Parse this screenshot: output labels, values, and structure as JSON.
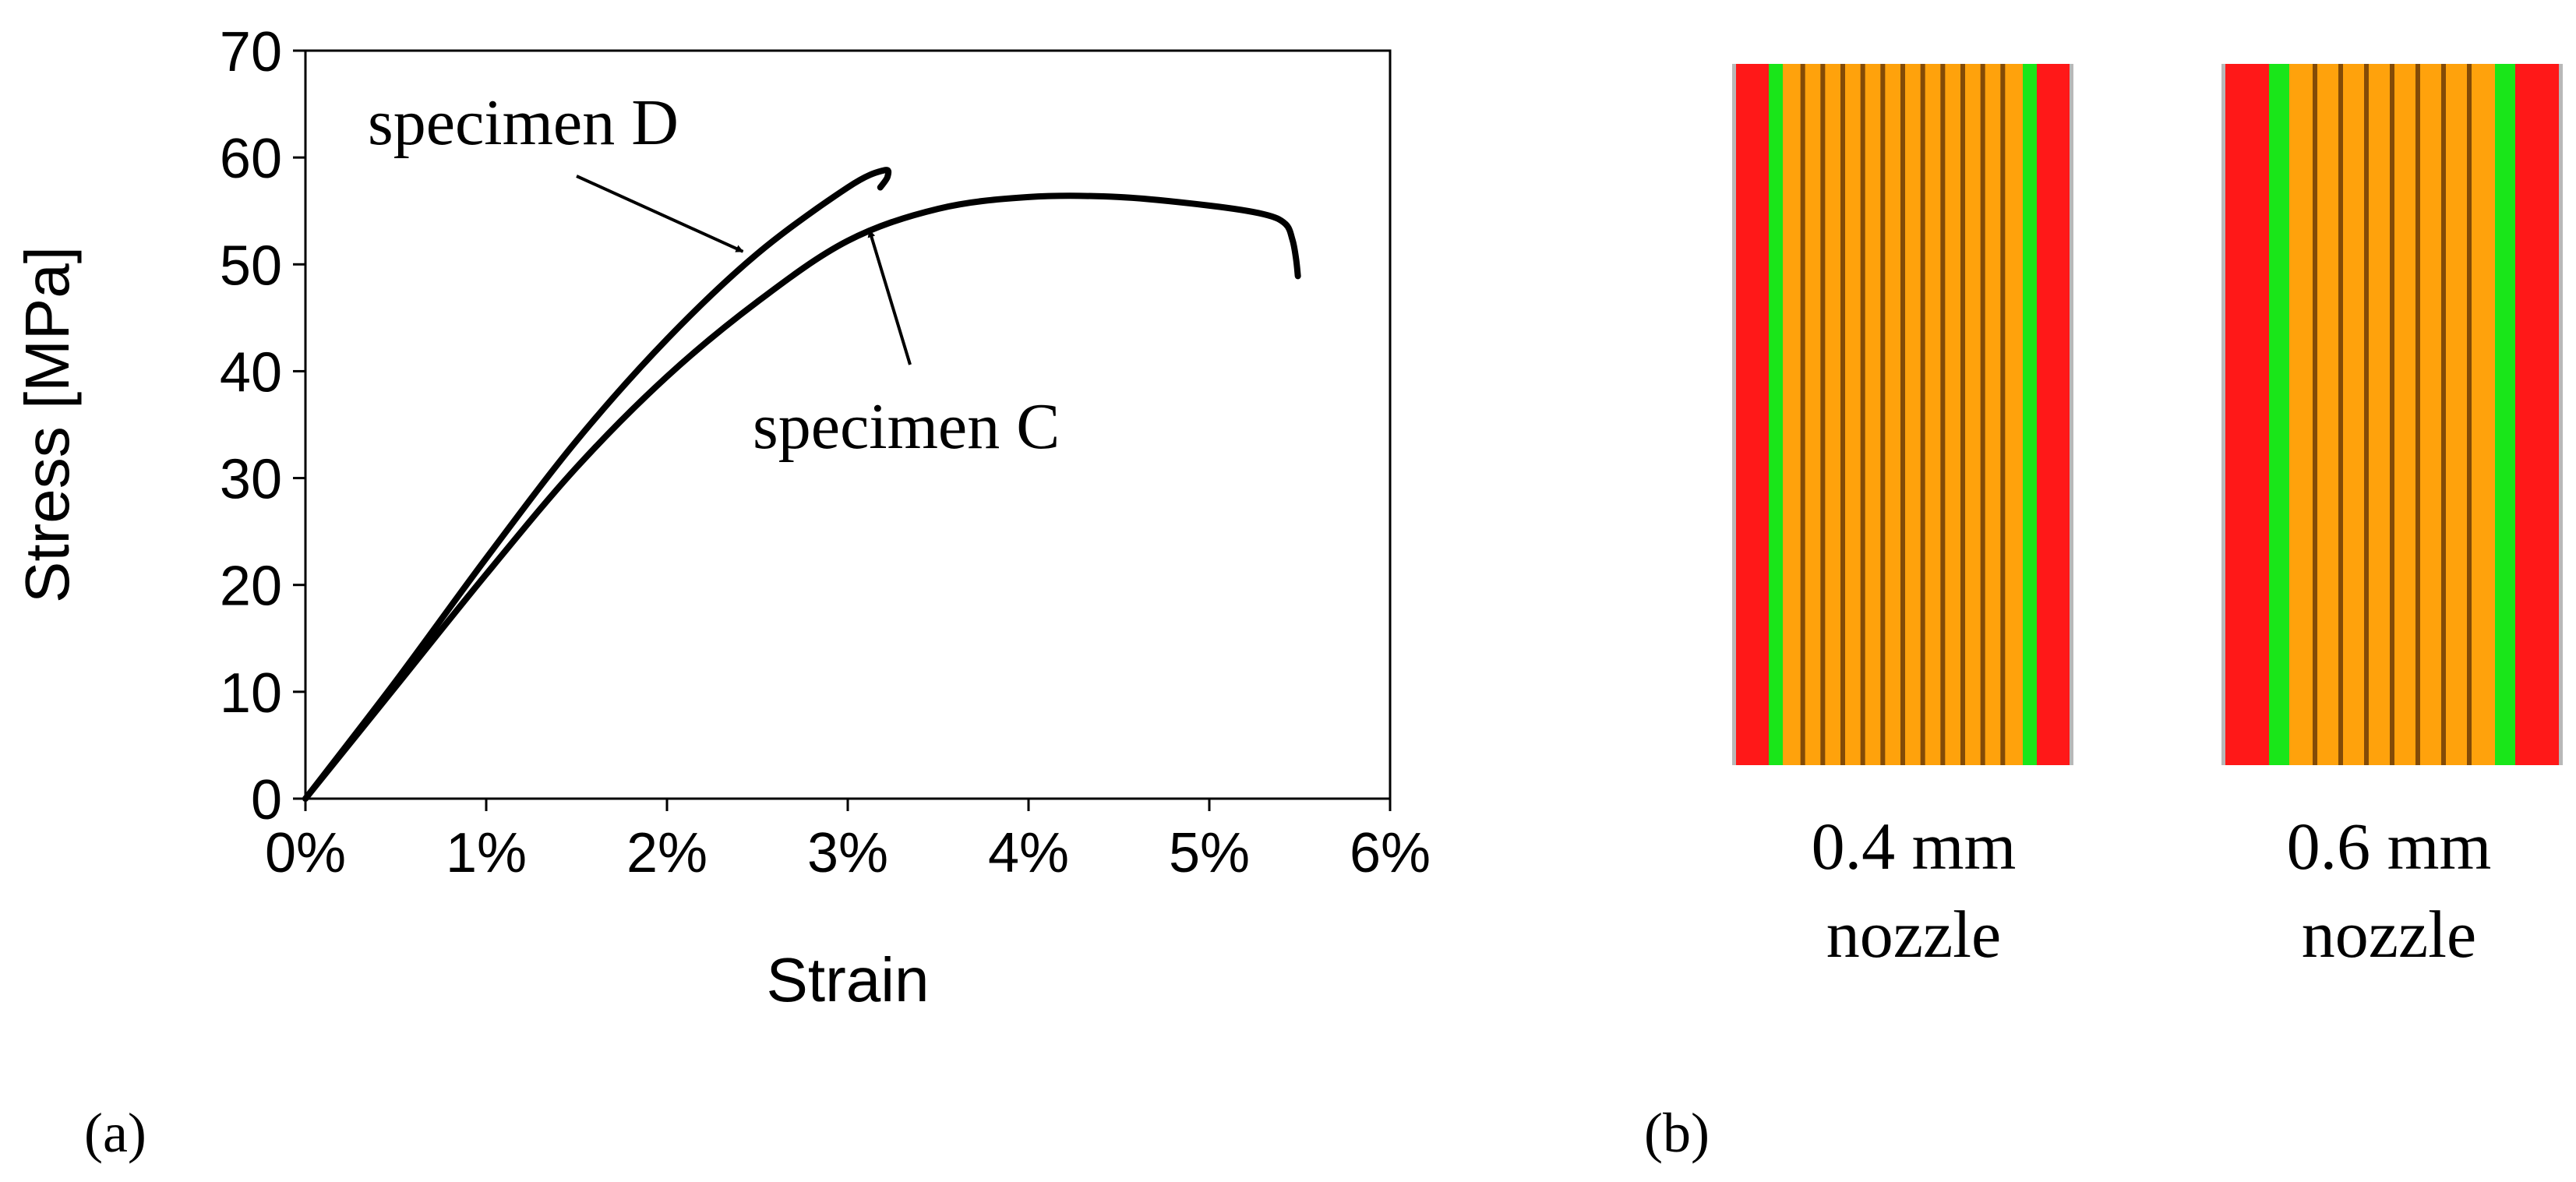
{
  "chart_data": [
    {
      "type": "line",
      "panel_label": "(a)",
      "xlabel": "Strain",
      "ylabel": "Stress [MPa]",
      "xlim": [
        0,
        6
      ],
      "ylim": [
        0,
        70
      ],
      "x_ticks": [
        0,
        1,
        2,
        3,
        4,
        5,
        6
      ],
      "x_tick_labels": [
        "0%",
        "1%",
        "2%",
        "3%",
        "4%",
        "5%",
        "6%"
      ],
      "y_ticks": [
        0,
        10,
        20,
        30,
        40,
        50,
        60,
        70
      ],
      "y_tick_labels": [
        "0",
        "10",
        "20",
        "30",
        "40",
        "50",
        "60",
        "70"
      ],
      "grid": false,
      "series": [
        {
          "name": "specimen D",
          "x": [
            0,
            0.5,
            1.0,
            1.5,
            2.0,
            2.5,
            3.0,
            3.2,
            3.22,
            3.18
          ],
          "y": [
            0,
            11,
            22.5,
            33.5,
            43,
            51,
            57.2,
            58.8,
            58.2,
            57.2
          ]
        },
        {
          "name": "specimen C",
          "x": [
            0,
            0.5,
            1.0,
            1.5,
            2.0,
            2.5,
            3.0,
            3.5,
            4.0,
            4.5,
            5.0,
            5.3,
            5.42,
            5.46,
            5.48,
            5.49
          ],
          "y": [
            0,
            10.5,
            21,
            31,
            39.5,
            46.5,
            52.2,
            55.2,
            56.3,
            56.3,
            55.5,
            54.7,
            53.8,
            52.3,
            50.5,
            48.9
          ]
        }
      ],
      "annotations": [
        {
          "text": "specimen D",
          "points_to_series": "specimen D",
          "at_x": 2.42,
          "at_y": 51.2
        },
        {
          "text": "specimen C",
          "points_to_series": "specimen C",
          "at_x": 3.12,
          "at_y": 53.2
        }
      ]
    },
    {
      "type": "image_panel",
      "panel_label": "(b)",
      "items": [
        {
          "caption_line1": "0.4 mm",
          "caption_line2": "nozzle"
        },
        {
          "caption_line1": "0.6 mm",
          "caption_line2": "nozzle"
        }
      ],
      "colors": {
        "outer": "#ff1818",
        "contour": "#19e619",
        "infill": "#ffa20c",
        "seam": "#5a2e05",
        "border": "#b8b8b8"
      }
    }
  ]
}
